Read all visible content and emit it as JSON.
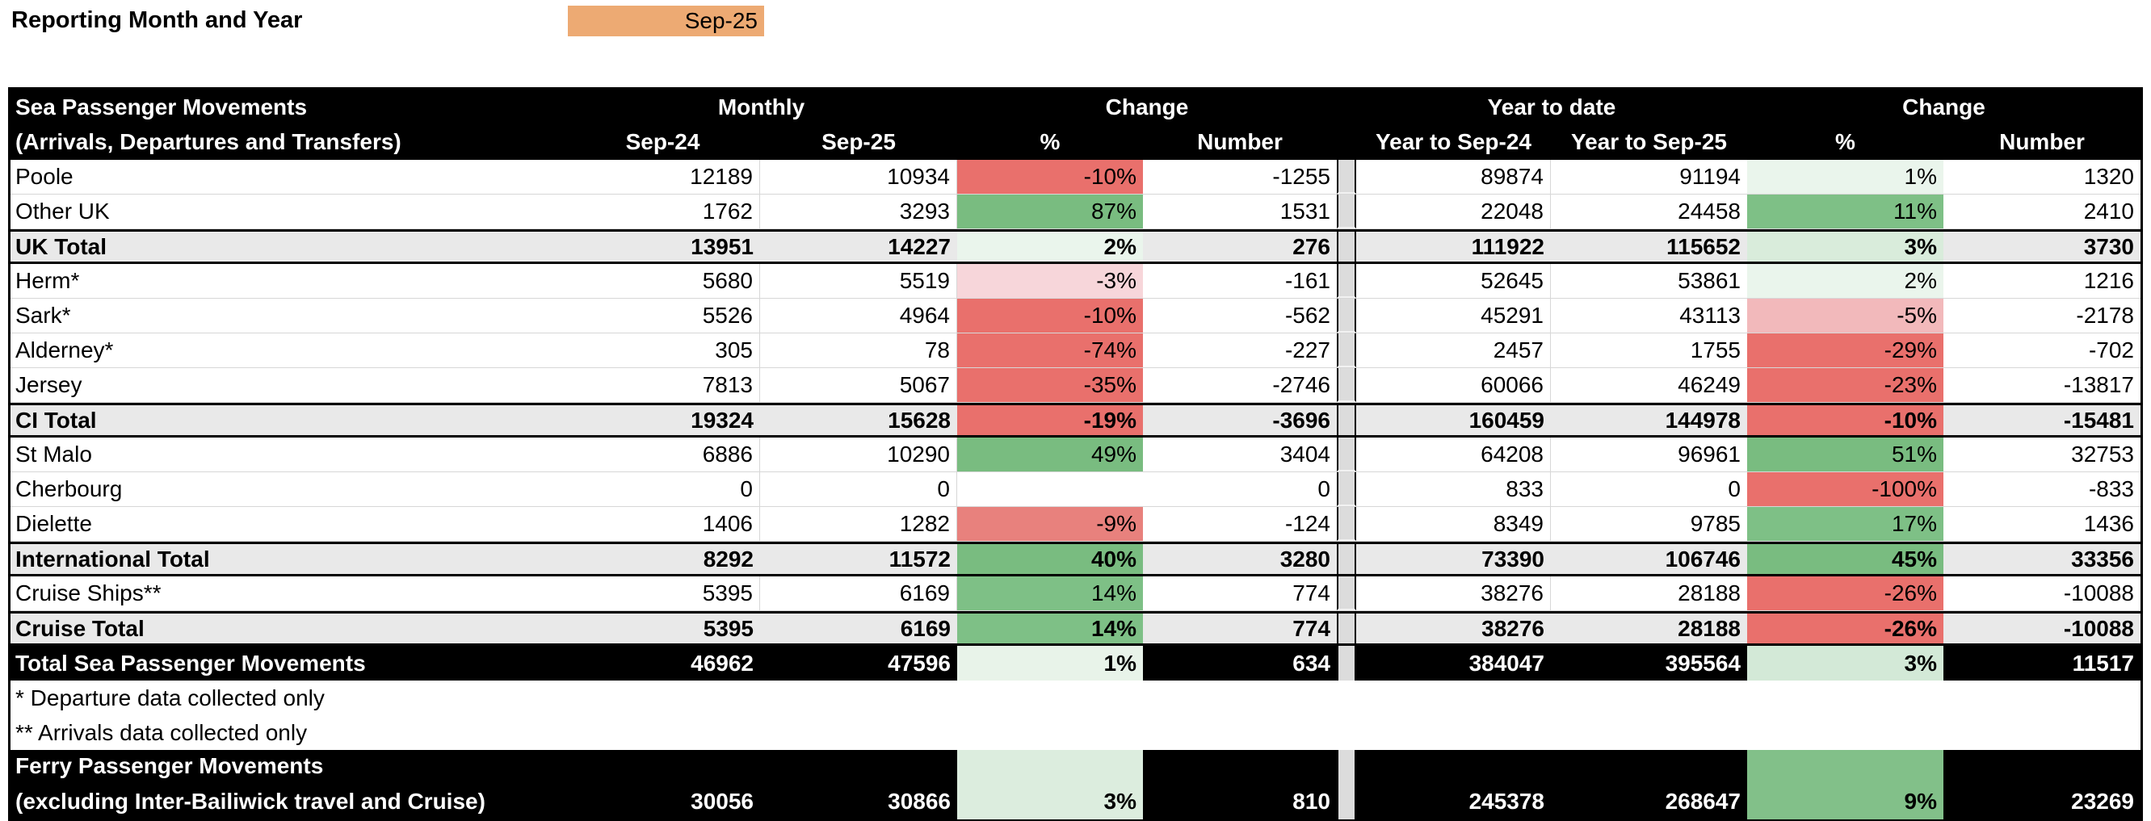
{
  "report_header": {
    "label": "Reporting Month and Year",
    "value": "Sep-25",
    "cell_color": "#edaa73"
  },
  "table": {
    "title_line1": "Sea Passenger Movements",
    "title_line2": "(Arrivals, Departures and Transfers)",
    "group_headers": {
      "monthly": "Monthly",
      "monthly_change": "Change",
      "ytd": "Year to date",
      "ytd_change": "Change"
    },
    "col_headers": {
      "monthly_prev": "Sep-24",
      "monthly_curr": "Sep-25",
      "pct": "%",
      "number": "Number",
      "ytd_prev": "Year to Sep-24",
      "ytd_curr": "Year to Sep-25",
      "ytd_pct": "%",
      "ytd_number": "Number"
    },
    "rows": [
      {
        "label": "Poole",
        "style": "normal",
        "m_prev": "12189",
        "m_curr": "10934",
        "m_pct": "-10%",
        "m_pct_bg": "#e9706c",
        "m_num": "-1255",
        "y_prev": "89874",
        "y_curr": "91194",
        "y_pct": "1%",
        "y_pct_bg": "#eaf5ec",
        "y_num": "1320"
      },
      {
        "label": "Other UK",
        "style": "normal",
        "m_prev": "1762",
        "m_curr": "3293",
        "m_pct": "87%",
        "m_pct_bg": "#79bc80",
        "m_num": "1531",
        "y_prev": "22048",
        "y_curr": "24458",
        "y_pct": "11%",
        "y_pct_bg": "#7ec086",
        "y_num": "2410"
      },
      {
        "label": "UK Total",
        "style": "total",
        "m_prev": "13951",
        "m_curr": "14227",
        "m_pct": "2%",
        "m_pct_bg": "#eaf5ec",
        "m_num": "276",
        "y_prev": "111922",
        "y_curr": "115652",
        "y_pct": "3%",
        "y_pct_bg": "#d9ecdb",
        "y_num": "3730"
      },
      {
        "label": "Herm*",
        "style": "normal",
        "m_prev": "5680",
        "m_curr": "5519",
        "m_pct": "-3%",
        "m_pct_bg": "#f7d6da",
        "m_num": "-161",
        "y_prev": "52645",
        "y_curr": "53861",
        "y_pct": "2%",
        "y_pct_bg": "#eaf5ec",
        "y_num": "1216"
      },
      {
        "label": "Sark*",
        "style": "normal",
        "m_prev": "5526",
        "m_curr": "4964",
        "m_pct": "-10%",
        "m_pct_bg": "#e9706c",
        "m_num": "-562",
        "y_prev": "45291",
        "y_curr": "43113",
        "y_pct": "-5%",
        "y_pct_bg": "#f2b9bb",
        "y_num": "-2178"
      },
      {
        "label": "Alderney*",
        "style": "normal",
        "m_prev": "305",
        "m_curr": "78",
        "m_pct": "-74%",
        "m_pct_bg": "#e9706c",
        "m_num": "-227",
        "y_prev": "2457",
        "y_curr": "1755",
        "y_pct": "-29%",
        "y_pct_bg": "#e9706c",
        "y_num": "-702"
      },
      {
        "label": "Jersey",
        "style": "normal",
        "m_prev": "7813",
        "m_curr": "5067",
        "m_pct": "-35%",
        "m_pct_bg": "#e9706c",
        "m_num": "-2746",
        "y_prev": "60066",
        "y_curr": "46249",
        "y_pct": "-23%",
        "y_pct_bg": "#e9706c",
        "y_num": "-13817"
      },
      {
        "label": "CI Total",
        "style": "total",
        "m_prev": "19324",
        "m_curr": "15628",
        "m_pct": "-19%",
        "m_pct_bg": "#e9706c",
        "m_num": "-3696",
        "y_prev": "160459",
        "y_curr": "144978",
        "y_pct": "-10%",
        "y_pct_bg": "#e9706c",
        "y_num": "-15481"
      },
      {
        "label": "St Malo",
        "style": "normal",
        "m_prev": "6886",
        "m_curr": "10290",
        "m_pct": "49%",
        "m_pct_bg": "#79bc80",
        "m_num": "3404",
        "y_prev": "64208",
        "y_curr": "96961",
        "y_pct": "51%",
        "y_pct_bg": "#79bc80",
        "y_num": "32753"
      },
      {
        "label": "Cherbourg",
        "style": "normal",
        "m_prev": "0",
        "m_curr": "0",
        "m_pct": "",
        "m_pct_bg": "",
        "m_num": "0",
        "y_prev": "833",
        "y_curr": "0",
        "y_pct": "-100%",
        "y_pct_bg": "#e9706c",
        "y_num": "-833"
      },
      {
        "label": "Dielette",
        "style": "normal",
        "m_prev": "1406",
        "m_curr": "1282",
        "m_pct": "-9%",
        "m_pct_bg": "#e8817d",
        "m_num": "-124",
        "y_prev": "8349",
        "y_curr": "9785",
        "y_pct": "17%",
        "y_pct_bg": "#7ec086",
        "y_num": "1436"
      },
      {
        "label": "International Total",
        "style": "total",
        "m_prev": "8292",
        "m_curr": "11572",
        "m_pct": "40%",
        "m_pct_bg": "#79bc80",
        "m_num": "3280",
        "y_prev": "73390",
        "y_curr": "106746",
        "y_pct": "45%",
        "y_pct_bg": "#79bc80",
        "y_num": "33356"
      },
      {
        "label": "Cruise Ships**",
        "style": "normal",
        "m_prev": "5395",
        "m_curr": "6169",
        "m_pct": "14%",
        "m_pct_bg": "#7ec086",
        "m_num": "774",
        "y_prev": "38276",
        "y_curr": "28188",
        "y_pct": "-26%",
        "y_pct_bg": "#e9706c",
        "y_num": "-10088"
      },
      {
        "label": "Cruise Total",
        "style": "total",
        "m_prev": "5395",
        "m_curr": "6169",
        "m_pct": "14%",
        "m_pct_bg": "#7ec086",
        "m_num": "774",
        "y_prev": "38276",
        "y_curr": "28188",
        "y_pct": "-26%",
        "y_pct_bg": "#e9706c",
        "y_num": "-10088"
      },
      {
        "label": "Total Sea Passenger Movements",
        "style": "grand",
        "m_prev": "46962",
        "m_curr": "47596",
        "m_pct": "1%",
        "m_pct_bg": "#e8f3e9",
        "m_num": "634",
        "y_prev": "384047",
        "y_curr": "395564",
        "y_pct": "3%",
        "y_pct_bg": "#d3e9d7",
        "y_num": "11517"
      }
    ],
    "footnotes": [
      "* Departure data collected only",
      "** Arrivals data collected only"
    ],
    "ferry": {
      "label_line1": "Ferry Passenger Movements",
      "label_line2": "(excluding Inter-Bailiwick travel and Cruise)",
      "m_prev": "30056",
      "m_curr": "30866",
      "m_pct": "3%",
      "m_pct_bg": "#dcedde",
      "m_num": "810",
      "y_prev": "245378",
      "y_curr": "268647",
      "y_pct": "9%",
      "y_pct_bg": "#82c089",
      "y_num": "23269"
    }
  },
  "colors": {
    "header_bg": "#000000",
    "header_text": "#ffffff",
    "total_row_bg": "#e9e9e9",
    "separator_column": "#dcdcdc",
    "gridline": "#d7d7d7",
    "negative_strong": "#e9706c",
    "negative_mid": "#f2b9bb",
    "negative_light": "#f7d6da",
    "positive_strong": "#79bc80",
    "positive_mid": "#7ec086",
    "positive_light": "#eaf5ec",
    "report_cell_bg": "#edaa73"
  }
}
